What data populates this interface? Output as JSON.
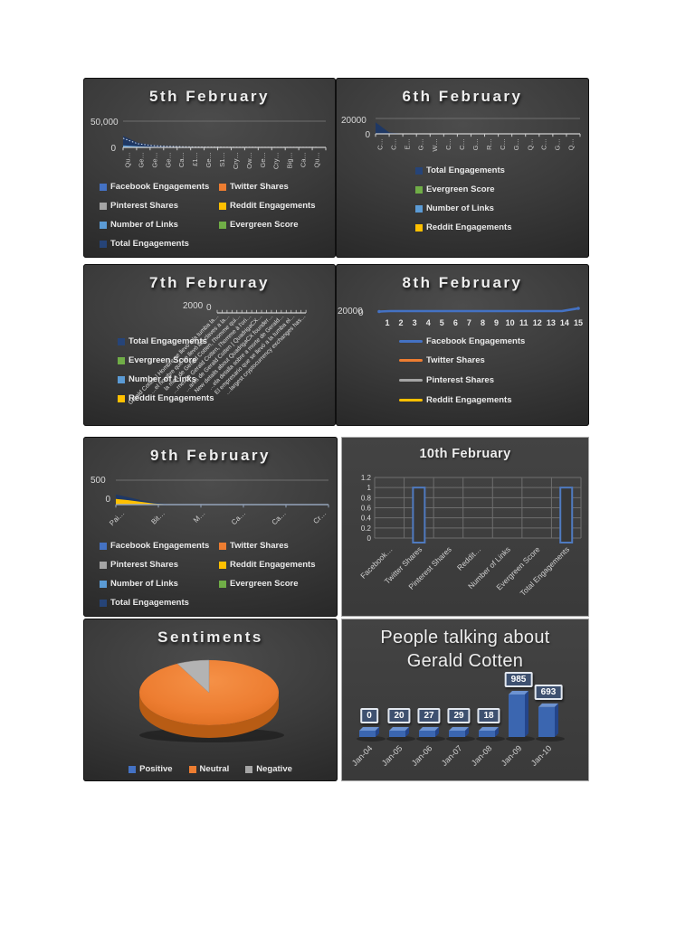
{
  "colors": {
    "facebook": "#4472c4",
    "twitter": "#ed7d31",
    "pinterest": "#a5a5a5",
    "reddit": "#ffc000",
    "links": "#5b9bd5",
    "evergreen": "#70ad47",
    "total": "#264478",
    "area_navy": "#1f3864",
    "bar_outline": "#4f7ac0",
    "pie_orange": "#ed7d31",
    "pie_orange_side": "#b85c14",
    "pie_gray": "#b3b3b3",
    "bar3d_front": "#3b66b0",
    "bar3d_top": "#6d93d1",
    "bar3d_side": "#24458a"
  },
  "chart_data": [
    {
      "id": "feb5",
      "type": "area",
      "title": "5th February",
      "y_ticks": [
        "50,000",
        "0"
      ],
      "ylim": [
        0,
        50000
      ],
      "categories": [
        "Qu…",
        "Ge…",
        "Ge…",
        "Ge…",
        "Ca…",
        "£1…",
        "Ge…",
        "S1…",
        "Cry…",
        "Ow…",
        "Ge…",
        "Cry…",
        "Big…",
        "Ca…",
        "Qu…"
      ],
      "series": [
        {
          "name": "Total Engagements",
          "color": "area_navy",
          "values": [
            22000,
            9000,
            4500,
            2600,
            1700,
            1100,
            800,
            600,
            450,
            350,
            280,
            220,
            170,
            130,
            100
          ]
        },
        {
          "name": "Number of Links",
          "color": "links",
          "values": [
            4000,
            2000,
            1000,
            600,
            350,
            220,
            150,
            100,
            70,
            50,
            35,
            25,
            18,
            12,
            8
          ]
        }
      ],
      "legend": [
        {
          "label": "Facebook Engagements",
          "color": "facebook"
        },
        {
          "label": "Twitter Shares",
          "color": "twitter"
        },
        {
          "label": "Pinterest Shares",
          "color": "pinterest"
        },
        {
          "label": "Reddit Engagements",
          "color": "reddit"
        },
        {
          "label": "Number of Links",
          "color": "links"
        },
        {
          "label": "Evergreen Score",
          "color": "evergreen"
        },
        {
          "label": "Total Engagements",
          "color": "total"
        }
      ]
    },
    {
      "id": "feb6",
      "type": "area",
      "title": "6th February",
      "y_ticks": [
        "20000",
        "0"
      ],
      "ylim": [
        0,
        20000
      ],
      "categories": [
        "C…",
        "C…",
        "E…",
        "G…",
        "W…",
        "C…",
        "C…",
        "G…",
        "R…",
        "C…",
        "G…",
        "Q…",
        "C…",
        "G…",
        "Q…"
      ],
      "series": [
        {
          "name": "Total Engagements",
          "color": "area_navy",
          "values": [
            15000,
            1800,
            400,
            150,
            80,
            50,
            30,
            20,
            15,
            10,
            8,
            6,
            5,
            4,
            3
          ]
        }
      ],
      "legend": [
        {
          "label": "Total Engagements",
          "color": "total"
        },
        {
          "label": "Evergreen Score",
          "color": "evergreen"
        },
        {
          "label": "Number of Links",
          "color": "links"
        },
        {
          "label": "Reddit Engagements",
          "color": "reddit"
        }
      ]
    },
    {
      "id": "feb7",
      "type": "area",
      "title": "7th Februray",
      "y_ticks": [
        "2000",
        "0"
      ],
      "ylim": [
        0,
        2000
      ],
      "rotated_labels": [
        "Gerald Cotten | Hombre se llevó a la tumba la…",
        "…el hombre que se llevó las claves a la…",
        "la mort de Gerald Cotten, l'homme qui…",
        "…rnet de Gerald Cotten, l'homme à l'ori…",
        "…ares de Gerald Cotten | QuadrigaCX…",
        "New details about QuadrigaCX founder…",
        "…ela detalla sobre a morte de Gerald…",
        "El empresario que se llevó a la tumba el…",
        "…largest cryptocurrency exchanges has…"
      ],
      "legend": [
        {
          "label": "Total Engagements",
          "color": "total"
        },
        {
          "label": "Evergreen Score",
          "color": "evergreen"
        },
        {
          "label": "Number of Links",
          "color": "links"
        },
        {
          "label": "Reddit Engagements",
          "color": "reddit"
        }
      ]
    },
    {
      "id": "feb8",
      "type": "line",
      "title": "8th February",
      "y_ticks": [
        "20000",
        "0"
      ],
      "ylim": [
        0,
        20000
      ],
      "categories": [
        "1",
        "2",
        "3",
        "4",
        "5",
        "6",
        "7",
        "8",
        "9",
        "10",
        "11",
        "12",
        "13",
        "14",
        "15"
      ],
      "series": [
        {
          "name": "Facebook Engagements",
          "color": "facebook",
          "values": [
            19500,
            19500,
            19500,
            19500,
            19500,
            19500,
            19500,
            19500,
            19500,
            19500,
            19500,
            19500,
            19500,
            19500,
            19900
          ]
        },
        {
          "name": "Twitter Shares",
          "color": "twitter",
          "values": [
            0,
            0,
            0,
            0,
            0,
            0,
            0,
            0,
            0,
            0,
            0,
            0,
            0,
            0,
            0
          ]
        },
        {
          "name": "Pinterest Shares",
          "color": "pinterest",
          "values": [
            0,
            0,
            0,
            0,
            0,
            0,
            0,
            0,
            0,
            0,
            0,
            0,
            0,
            0,
            0
          ]
        },
        {
          "name": "Reddit Engagements",
          "color": "reddit",
          "values": [
            0,
            0,
            0,
            0,
            0,
            0,
            0,
            0,
            0,
            0,
            0,
            0,
            0,
            0,
            0
          ]
        }
      ],
      "legend": [
        {
          "label": "Facebook Engagements",
          "color": "facebook"
        },
        {
          "label": "Twitter Shares",
          "color": "twitter"
        },
        {
          "label": "Pinterest Shares",
          "color": "pinterest"
        },
        {
          "label": "Reddit Engagements",
          "color": "reddit"
        }
      ]
    },
    {
      "id": "feb9",
      "type": "area",
      "title": "9th February",
      "y_ticks": [
        "500",
        "0"
      ],
      "ylim": [
        0,
        500
      ],
      "categories": [
        "Pai…",
        "Bit…",
        "M…",
        "Ca…",
        "Ca…",
        "Cr…"
      ],
      "series": [
        {
          "name": "Total Engagements",
          "color": "area_navy",
          "values": [
            210,
            150,
            90,
            45,
            15,
            0
          ]
        },
        {
          "name": "Reddit Engagements",
          "color": "reddit",
          "values": [
            115,
            90,
            55,
            22,
            7,
            0
          ]
        }
      ],
      "legend": [
        {
          "label": "Facebook Engagements",
          "color": "facebook"
        },
        {
          "label": "Twitter Shares",
          "color": "twitter"
        },
        {
          "label": "Pinterest Shares",
          "color": "pinterest"
        },
        {
          "label": "Reddit Engagements",
          "color": "reddit"
        },
        {
          "label": "Number of Links",
          "color": "links"
        },
        {
          "label": "Evergreen Score",
          "color": "evergreen"
        },
        {
          "label": "Total Engagements",
          "color": "total"
        }
      ]
    },
    {
      "id": "feb10",
      "type": "bar",
      "title": "10th February",
      "y_ticks": [
        "0",
        "0.2",
        "0.4",
        "0.6",
        "0.8",
        "1",
        "1.2"
      ],
      "ylim": [
        0,
        1.2
      ],
      "categories": [
        "Facebook…",
        "Twitter Shares",
        "Pinterest Shares",
        "Reddit…",
        "Number of Links",
        "Evergreen Score",
        "Total Engagements"
      ],
      "values": [
        0,
        1,
        0,
        0,
        0,
        0,
        1
      ]
    },
    {
      "id": "sentiments",
      "type": "pie",
      "title": "Sentiments",
      "labels": [
        "Positive",
        "Neutral",
        "Negative"
      ],
      "values": [
        0,
        94,
        6
      ],
      "legend": [
        {
          "label": "Positive",
          "color": "facebook"
        },
        {
          "label": "Neutral",
          "color": "twitter"
        },
        {
          "label": "Negative",
          "color": "pinterest"
        }
      ]
    },
    {
      "id": "people",
      "type": "bar",
      "title": "People talking about Gerald Cotten",
      "title_lines": [
        "People talking about",
        "Gerald Cotten"
      ],
      "categories": [
        "Jan-04",
        "Jan-05",
        "Jan-06",
        "Jan-07",
        "Jan-08",
        "Jan-09",
        "Jan-10"
      ],
      "values": [
        0,
        20,
        27,
        29,
        18,
        985,
        693
      ]
    }
  ]
}
